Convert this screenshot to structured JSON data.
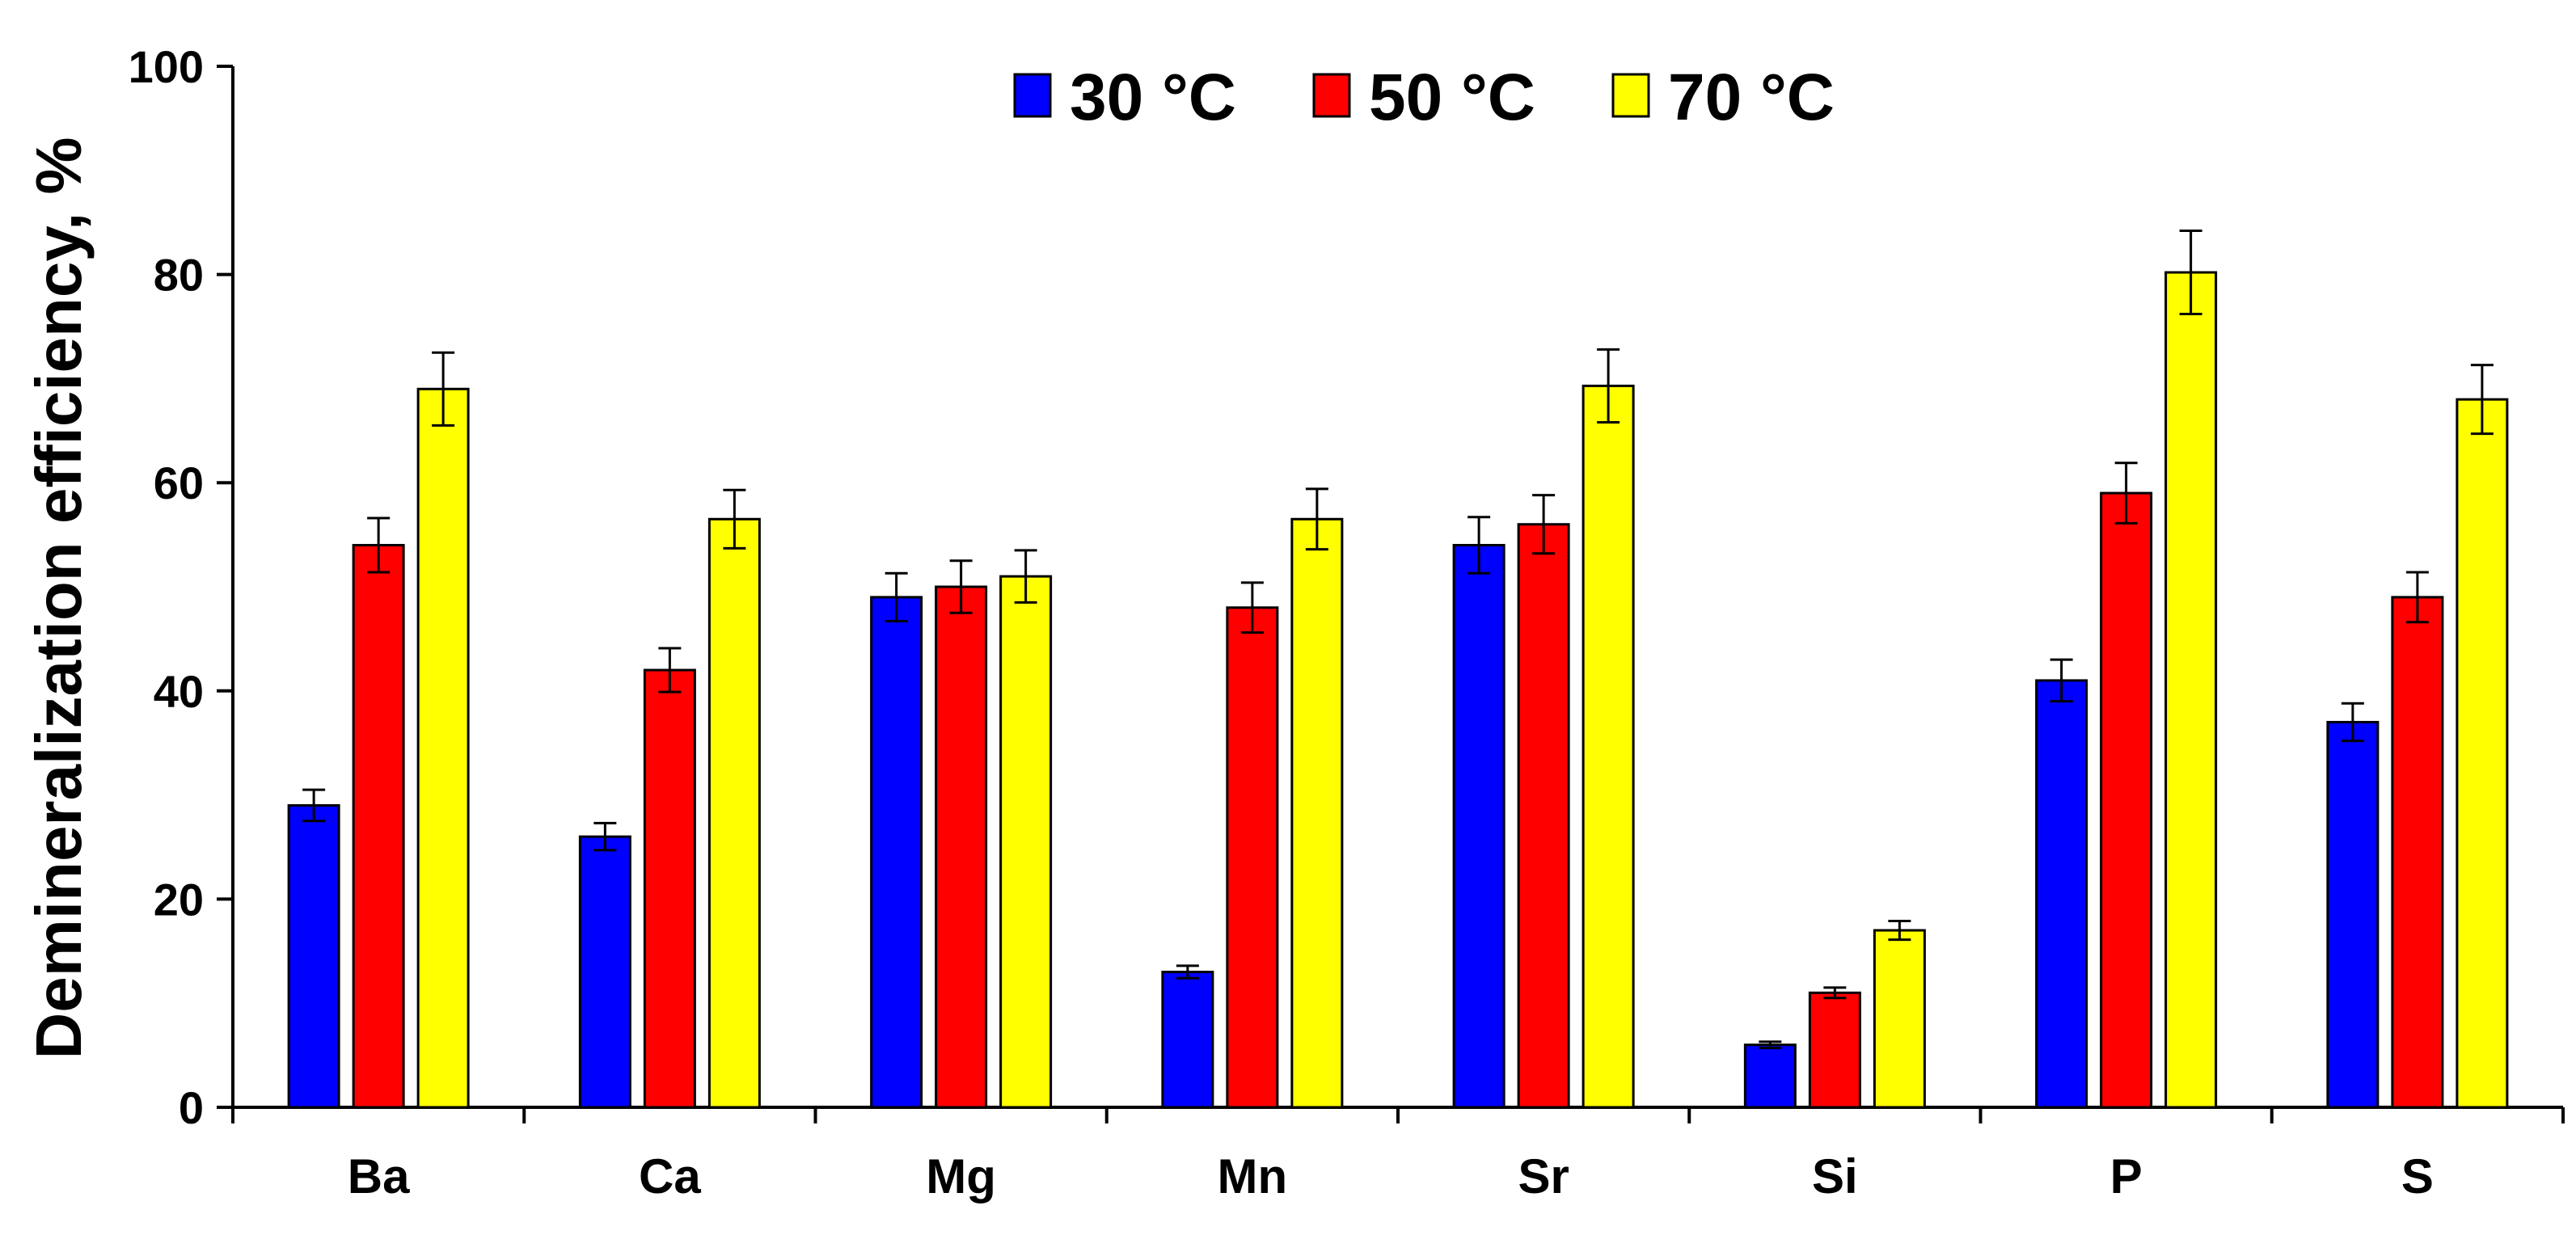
{
  "chart_data": {
    "type": "bar",
    "title": "",
    "xlabel": "",
    "ylabel": "Demineralization efficiency, %",
    "ylim": [
      0,
      100
    ],
    "yticks": [
      0,
      20,
      40,
      60,
      80,
      100
    ],
    "legend_position": "top-center",
    "categories": [
      "Ba",
      "Ca",
      "Mg",
      "Mn",
      "Sr",
      "Si",
      "P",
      "S"
    ],
    "series": [
      {
        "name": "30 °C",
        "color": "#0000ff",
        "values": [
          29,
          26,
          49,
          13,
          54,
          6,
          41,
          37
        ],
        "errors": [
          1.5,
          1.3,
          2.3,
          0.6,
          2.7,
          0.3,
          2.0,
          1.8
        ]
      },
      {
        "name": "50 °C",
        "color": "#ff0000",
        "values": [
          54,
          42,
          50,
          48,
          56,
          11,
          59,
          49
        ],
        "errors": [
          2.6,
          2.1,
          2.5,
          2.4,
          2.8,
          0.5,
          2.9,
          2.4
        ]
      },
      {
        "name": "70 °C",
        "color": "#ffff00",
        "values": [
          69,
          56.5,
          51,
          56.5,
          69.3,
          17,
          80.2,
          68
        ],
        "errors": [
          3.5,
          2.8,
          2.5,
          2.9,
          3.5,
          0.9,
          4.0,
          3.3
        ]
      }
    ]
  }
}
